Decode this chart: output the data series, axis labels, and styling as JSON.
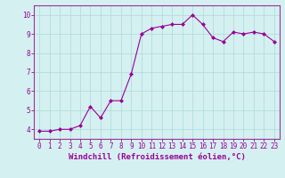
{
  "x": [
    0,
    1,
    2,
    3,
    4,
    5,
    6,
    7,
    8,
    9,
    10,
    11,
    12,
    13,
    14,
    15,
    16,
    17,
    18,
    19,
    20,
    21,
    22,
    23
  ],
  "y": [
    3.9,
    3.9,
    4.0,
    4.0,
    4.2,
    5.2,
    4.6,
    5.5,
    5.5,
    6.9,
    9.0,
    9.3,
    9.4,
    9.5,
    9.5,
    10.0,
    9.5,
    8.8,
    8.6,
    9.1,
    9.0,
    9.1,
    9.0,
    8.6
  ],
  "line_color": "#990099",
  "marker": "D",
  "marker_size": 2.0,
  "bg_color": "#d5f0f0",
  "grid_color": "#b0dddd",
  "xlabel": "Windchill (Refroidissement éolien,°C)",
  "xlabel_color": "#990099",
  "xlim": [
    -0.5,
    23.5
  ],
  "ylim": [
    3.5,
    10.5
  ],
  "yticks": [
    4,
    5,
    6,
    7,
    8,
    9,
    10
  ],
  "xticks": [
    0,
    1,
    2,
    3,
    4,
    5,
    6,
    7,
    8,
    9,
    10,
    11,
    12,
    13,
    14,
    15,
    16,
    17,
    18,
    19,
    20,
    21,
    22,
    23
  ],
  "tick_fontsize": 5.5,
  "xlabel_fontsize": 6.5,
  "spine_color": "#993399",
  "linewidth": 0.8
}
